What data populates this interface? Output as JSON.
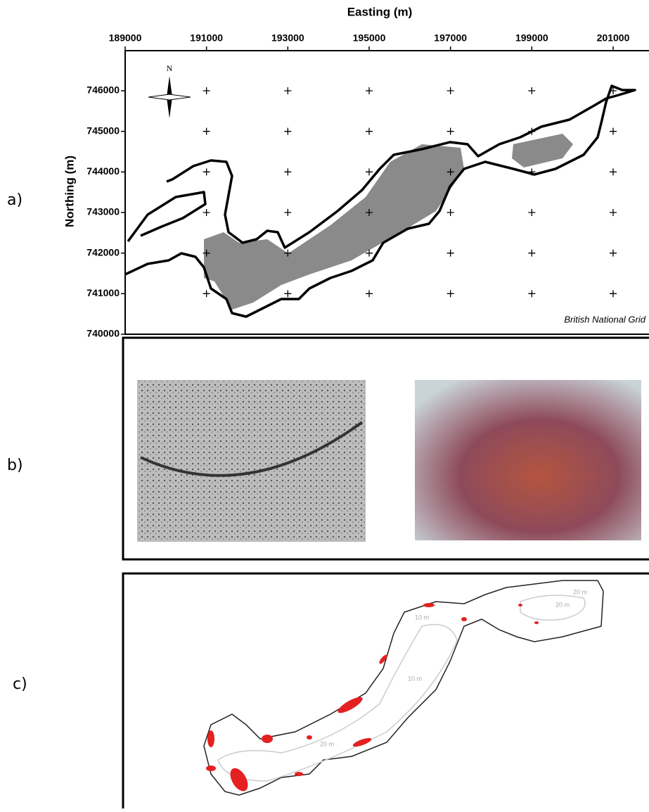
{
  "panel_labels": [
    "a)",
    "b)",
    "c)"
  ],
  "panel_a": {
    "xlabel": "Easting (m)",
    "ylabel": "Northing (m)",
    "xlim": [
      189000,
      201900
    ],
    "ylim": [
      740000,
      747000
    ],
    "xticks": [
      189000,
      191000,
      193000,
      195000,
      197000,
      199000,
      201000
    ],
    "yticks": [
      740000,
      741000,
      742000,
      743000,
      744000,
      745000,
      746000
    ],
    "north": "N",
    "grid_note": "British National Grid"
  },
  "panel_c": {
    "contour_labels": [
      "10 m",
      "20 m",
      "10 m",
      "20 m",
      "20 m"
    ]
  }
}
